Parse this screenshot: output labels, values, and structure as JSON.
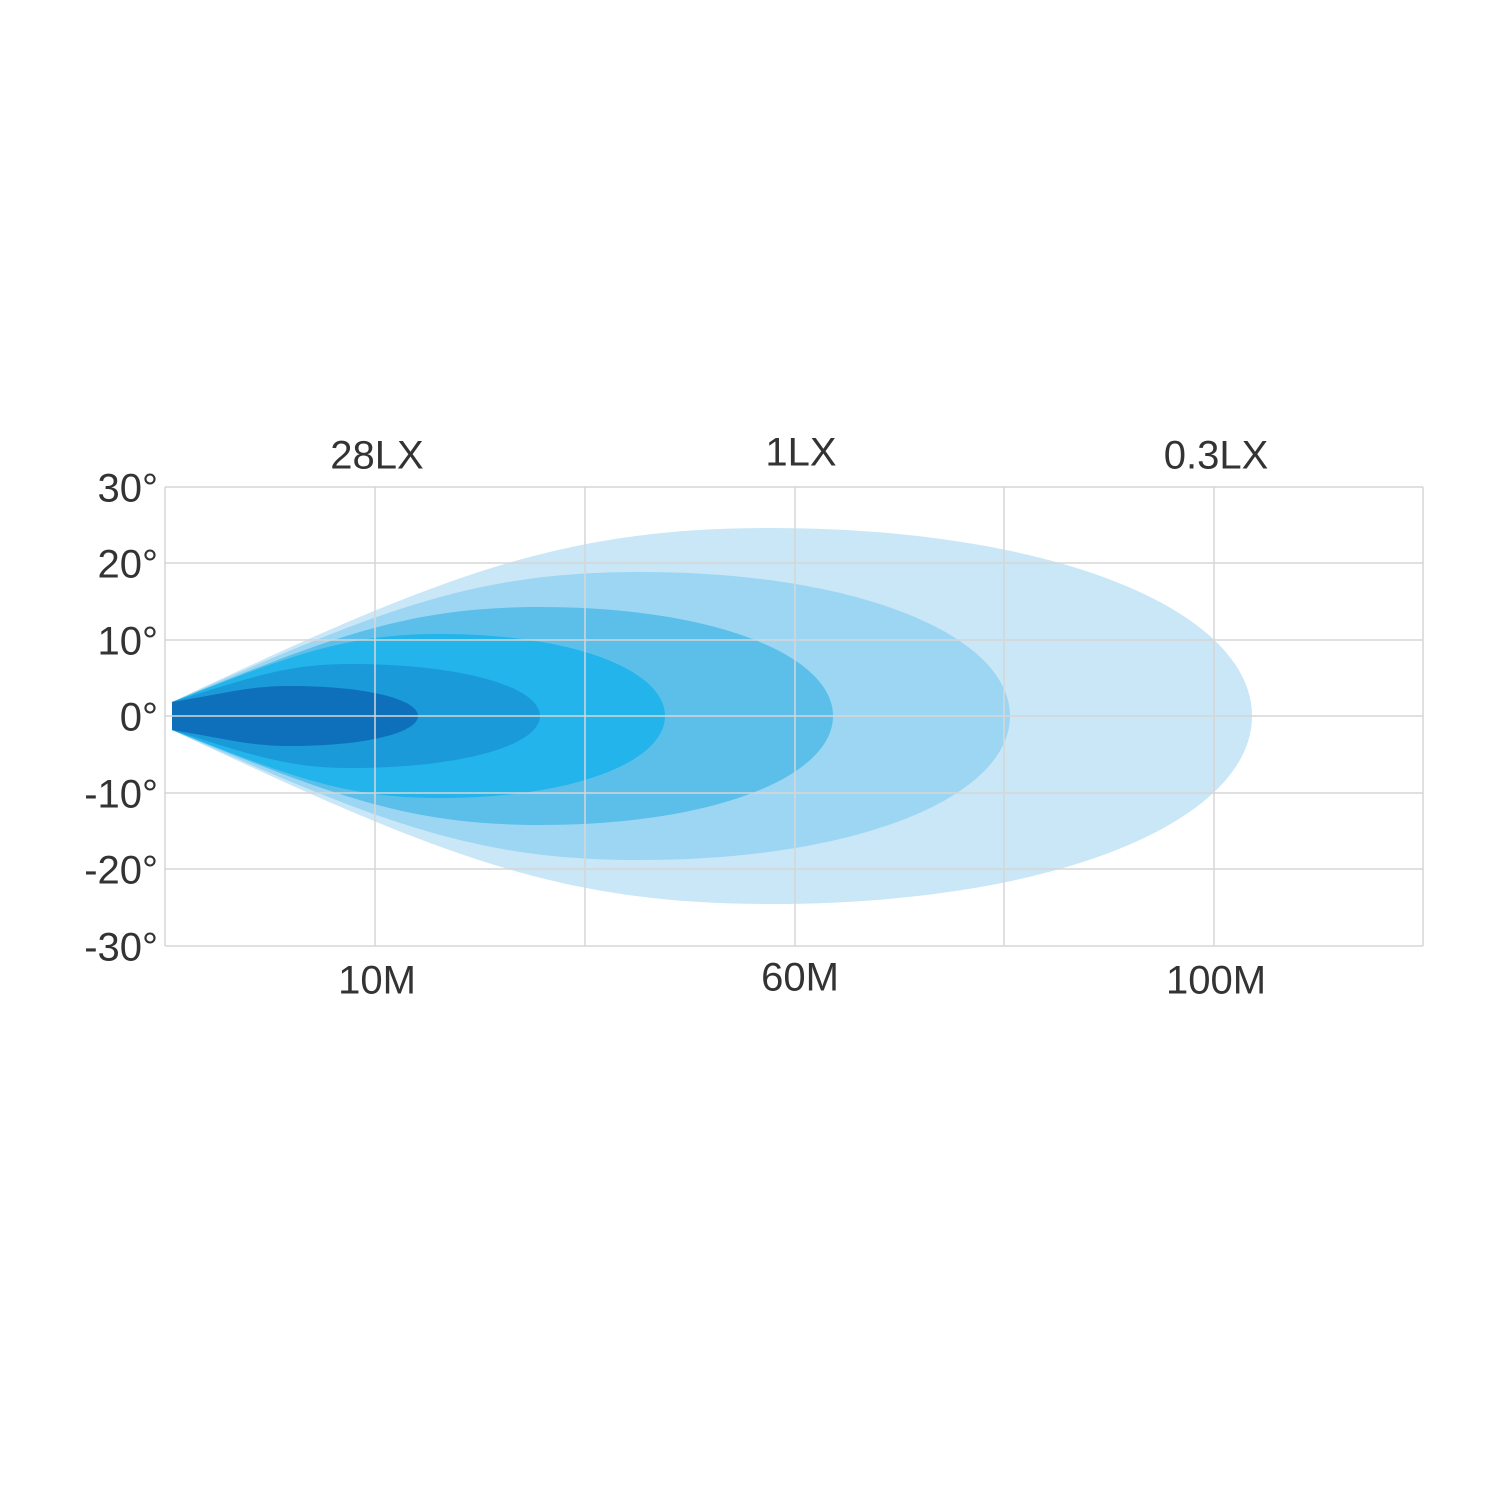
{
  "y_axis": {
    "labels": [
      "30°",
      "20°",
      "10°",
      "0°",
      "-10°",
      "-20°",
      "-30°"
    ]
  },
  "top_labels": [
    "28LX",
    "1LX",
    "0.3LX"
  ],
  "bottom_labels": [
    "10M",
    "60M",
    "100M"
  ]
}
